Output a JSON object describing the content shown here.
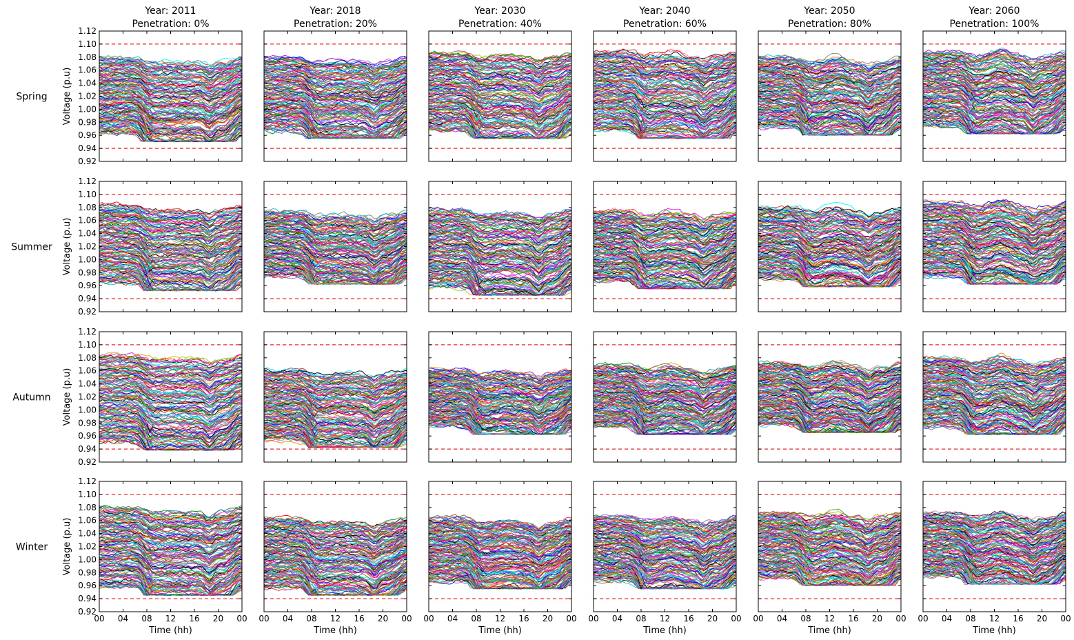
{
  "colors": {
    "limit": "#ff2020",
    "palette": [
      "#0000ff",
      "#008000",
      "#ff0000",
      "#00bfbf",
      "#bf00bf",
      "#bfbf00",
      "#000000",
      "#ff7f0e",
      "#1f77b4",
      "#2ca02c",
      "#d62728",
      "#9467bd",
      "#8c564b",
      "#e377c2",
      "#7f7f7f",
      "#17becf",
      "#ff00ff",
      "#00ffff"
    ]
  },
  "chart_data": {
    "type": "line",
    "layout": "grid-4x6",
    "ylabel": "Voltage (p.u)",
    "xlabel": "Time (hh)",
    "xticks": [
      "00",
      "04",
      "08",
      "12",
      "16",
      "20",
      "00"
    ],
    "yticks": [
      "0.92",
      "0.94",
      "0.96",
      "0.98",
      "1.00",
      "1.02",
      "1.04",
      "1.06",
      "1.08",
      "1.10",
      "1.12"
    ],
    "xlim": [
      0,
      24
    ],
    "ylim": [
      0.92,
      1.12
    ],
    "limits": {
      "upper": 1.1,
      "lower": 0.94
    },
    "columns": [
      {
        "year": "Year: 2011",
        "penetration": "Penetration: 0%"
      },
      {
        "year": "Year: 2018",
        "penetration": "Penetration: 20%"
      },
      {
        "year": "Year: 2030",
        "penetration": "Penetration: 40%"
      },
      {
        "year": "Year: 2040",
        "penetration": "Penetration: 60%"
      },
      {
        "year": "Year: 2050",
        "penetration": "Penetration: 80%"
      },
      {
        "year": "Year: 2060",
        "penetration": "Penetration: 100%"
      }
    ],
    "rows": [
      "Spring",
      "Summer",
      "Autumn",
      "Winter"
    ],
    "panel_ranges": [
      [
        [
          0.95,
          1.088
        ],
        [
          0.955,
          1.088
        ],
        [
          0.955,
          1.095
        ],
        [
          0.955,
          1.097
        ],
        [
          0.96,
          1.088
        ],
        [
          0.962,
          1.096
        ]
      ],
      [
        [
          0.952,
          1.092
        ],
        [
          0.962,
          1.082
        ],
        [
          0.945,
          1.085
        ],
        [
          0.955,
          1.083
        ],
        [
          0.958,
          1.088
        ],
        [
          0.962,
          1.096
        ]
      ],
      [
        [
          0.938,
          1.093
        ],
        [
          0.942,
          1.07
        ],
        [
          0.962,
          1.07
        ],
        [
          0.962,
          1.077
        ],
        [
          0.965,
          1.08
        ],
        [
          0.962,
          1.088
        ]
      ],
      [
        [
          0.945,
          1.088
        ],
        [
          0.945,
          1.072
        ],
        [
          0.955,
          1.072
        ],
        [
          0.955,
          1.075
        ],
        [
          0.96,
          1.08
        ],
        [
          0.962,
          1.08
        ]
      ]
    ]
  }
}
